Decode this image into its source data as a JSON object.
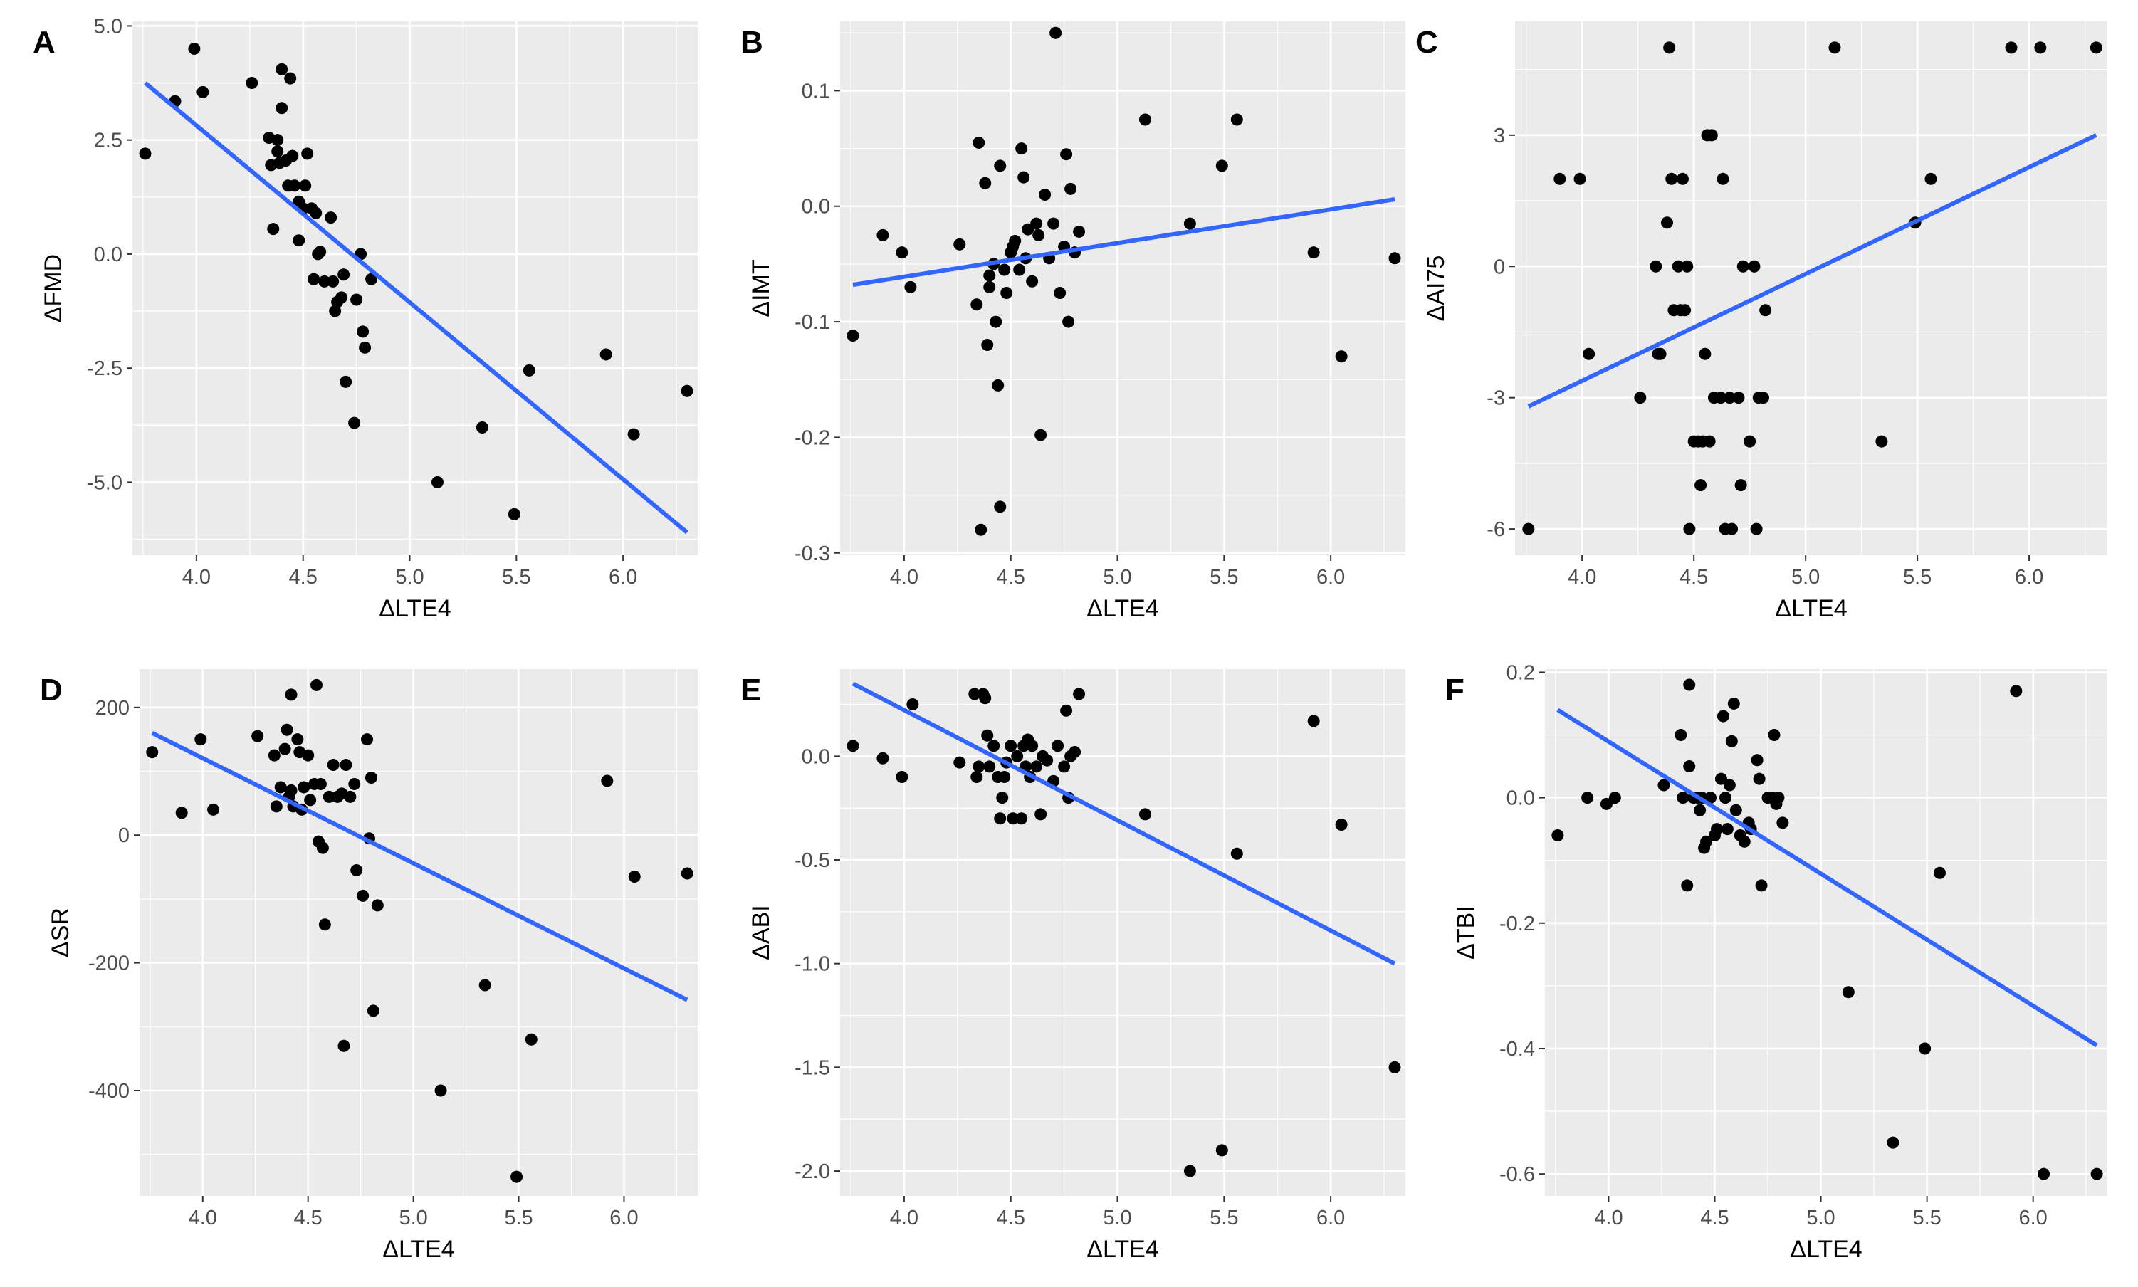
{
  "figure": {
    "background": "#ffffff",
    "panel_background": "#ebebeb",
    "grid_color": "#ffffff",
    "point_color": "#000000",
    "line_color": "#3366ff"
  },
  "chart_data": [
    {
      "panel": "A",
      "type": "scatter",
      "xlabel": "ΔLTE4",
      "ylabel": "ΔFMD",
      "xlim": [
        3.7,
        6.35
      ],
      "ylim": [
        -6.6,
        5.1
      ],
      "xticks": [
        4.0,
        4.5,
        5.0,
        5.5,
        6.0
      ],
      "xtick_labels": [
        "4.0",
        "4.5",
        "5.0",
        "5.5",
        "6.0"
      ],
      "yticks": [
        5.0,
        2.5,
        0.0,
        -2.5,
        -5.0
      ],
      "ytick_labels": [
        "5.0",
        "2.5",
        "0.0",
        "-2.5",
        "-5.0"
      ],
      "points": [
        [
          3.76,
          2.2
        ],
        [
          3.9,
          3.35
        ],
        [
          3.99,
          4.5
        ],
        [
          4.03,
          3.55
        ],
        [
          4.26,
          3.75
        ],
        [
          4.34,
          2.55
        ],
        [
          4.35,
          1.95
        ],
        [
          4.36,
          0.55
        ],
        [
          4.38,
          2.5
        ],
        [
          4.38,
          2.25
        ],
        [
          4.39,
          2.0
        ],
        [
          4.4,
          4.05
        ],
        [
          4.4,
          3.2
        ],
        [
          4.42,
          2.05
        ],
        [
          4.43,
          1.5
        ],
        [
          4.44,
          3.85
        ],
        [
          4.45,
          2.15
        ],
        [
          4.46,
          1.5
        ],
        [
          4.48,
          1.15
        ],
        [
          4.48,
          0.3
        ],
        [
          4.5,
          1.0
        ],
        [
          4.51,
          1.5
        ],
        [
          4.52,
          2.2
        ],
        [
          4.54,
          1.0
        ],
        [
          4.55,
          -0.55
        ],
        [
          4.56,
          0.9
        ],
        [
          4.57,
          0.0
        ],
        [
          4.58,
          0.05
        ],
        [
          4.6,
          -0.6
        ],
        [
          4.63,
          0.8
        ],
        [
          4.64,
          -0.6
        ],
        [
          4.65,
          -1.25
        ],
        [
          4.66,
          -1.05
        ],
        [
          4.68,
          -0.95
        ],
        [
          4.69,
          -0.45
        ],
        [
          4.7,
          -2.8
        ],
        [
          4.74,
          -3.7
        ],
        [
          4.75,
          -1.0
        ],
        [
          4.77,
          0.0
        ],
        [
          4.78,
          -1.7
        ],
        [
          4.79,
          -2.05
        ],
        [
          4.82,
          -0.55
        ],
        [
          5.13,
          -5.0
        ],
        [
          5.34,
          -3.8
        ],
        [
          5.49,
          -5.7
        ],
        [
          5.56,
          -2.55
        ],
        [
          5.92,
          -2.2
        ],
        [
          6.05,
          -3.95
        ],
        [
          6.3,
          -3.0
        ]
      ],
      "fit_line": {
        "x": [
          3.76,
          6.3
        ],
        "y": [
          3.75,
          -6.1
        ]
      }
    },
    {
      "panel": "B",
      "type": "scatter",
      "xlabel": "ΔLTE4",
      "ylabel": "ΔIMT",
      "xlim": [
        3.7,
        6.35
      ],
      "ylim": [
        -0.302,
        0.16
      ],
      "xticks": [
        4.0,
        4.5,
        5.0,
        5.5,
        6.0
      ],
      "xtick_labels": [
        "4.0",
        "4.5",
        "5.0",
        "5.5",
        "6.0"
      ],
      "yticks": [
        0.1,
        0.0,
        -0.1,
        -0.2,
        -0.3
      ],
      "ytick_labels": [
        "0.1",
        "0.0",
        "-0.1",
        "-0.2",
        "-0.3"
      ],
      "points": [
        [
          3.76,
          -0.112
        ],
        [
          3.9,
          -0.025
        ],
        [
          3.99,
          -0.04
        ],
        [
          4.03,
          -0.07
        ],
        [
          4.26,
          -0.033
        ],
        [
          4.34,
          -0.085
        ],
        [
          4.35,
          0.055
        ],
        [
          4.36,
          -0.28
        ],
        [
          4.38,
          0.02
        ],
        [
          4.39,
          -0.12
        ],
        [
          4.4,
          -0.06
        ],
        [
          4.4,
          -0.07
        ],
        [
          4.42,
          -0.05
        ],
        [
          4.43,
          -0.1
        ],
        [
          4.44,
          -0.155
        ],
        [
          4.45,
          -0.26
        ],
        [
          4.45,
          0.035
        ],
        [
          4.47,
          -0.055
        ],
        [
          4.48,
          -0.075
        ],
        [
          4.5,
          -0.04
        ],
        [
          4.51,
          -0.035
        ],
        [
          4.52,
          -0.03
        ],
        [
          4.54,
          -0.055
        ],
        [
          4.55,
          0.05
        ],
        [
          4.56,
          0.025
        ],
        [
          4.57,
          -0.045
        ],
        [
          4.58,
          -0.02
        ],
        [
          4.6,
          -0.065
        ],
        [
          4.62,
          -0.015
        ],
        [
          4.63,
          -0.025
        ],
        [
          4.64,
          -0.198
        ],
        [
          4.66,
          0.01
        ],
        [
          4.68,
          -0.045
        ],
        [
          4.7,
          -0.015
        ],
        [
          4.71,
          0.15
        ],
        [
          4.73,
          -0.075
        ],
        [
          4.75,
          -0.035
        ],
        [
          4.76,
          0.045
        ],
        [
          4.77,
          -0.1
        ],
        [
          4.78,
          0.015
        ],
        [
          4.8,
          -0.04
        ],
        [
          4.82,
          -0.022
        ],
        [
          5.13,
          0.075
        ],
        [
          5.34,
          -0.015
        ],
        [
          5.49,
          0.035
        ],
        [
          5.56,
          0.075
        ],
        [
          5.92,
          -0.04
        ],
        [
          6.05,
          -0.13
        ],
        [
          6.3,
          -0.045
        ]
      ],
      "fit_line": {
        "x": [
          3.76,
          6.3
        ],
        "y": [
          -0.068,
          0.006
        ]
      }
    },
    {
      "panel": "C",
      "type": "scatter",
      "xlabel": "ΔLTE4",
      "ylabel": "ΔAI75",
      "xlim": [
        3.7,
        6.35
      ],
      "ylim": [
        -6.6,
        5.6
      ],
      "xticks": [
        4.0,
        4.5,
        5.0,
        5.5,
        6.0
      ],
      "xtick_labels": [
        "4.0",
        "4.5",
        "5.0",
        "5.5",
        "6.0"
      ],
      "yticks": [
        3,
        0,
        -3,
        -6
      ],
      "ytick_labels": [
        "3",
        "0",
        "-3",
        "-6"
      ],
      "points": [
        [
          3.76,
          -6
        ],
        [
          3.9,
          2
        ],
        [
          3.99,
          2
        ],
        [
          4.03,
          -2
        ],
        [
          4.26,
          -3
        ],
        [
          4.33,
          0
        ],
        [
          4.34,
          -2
        ],
        [
          4.35,
          -2
        ],
        [
          4.38,
          1
        ],
        [
          4.39,
          5
        ],
        [
          4.4,
          2
        ],
        [
          4.41,
          -1
        ],
        [
          4.43,
          0
        ],
        [
          4.44,
          -1
        ],
        [
          4.45,
          2
        ],
        [
          4.46,
          -1
        ],
        [
          4.47,
          0
        ],
        [
          4.48,
          -6
        ],
        [
          4.5,
          -4
        ],
        [
          4.52,
          -4
        ],
        [
          4.53,
          -5
        ],
        [
          4.54,
          -4
        ],
        [
          4.55,
          -2
        ],
        [
          4.56,
          3
        ],
        [
          4.57,
          -4
        ],
        [
          4.58,
          3
        ],
        [
          4.59,
          -3
        ],
        [
          4.62,
          -3
        ],
        [
          4.63,
          2
        ],
        [
          4.64,
          -6
        ],
        [
          4.66,
          -3
        ],
        [
          4.67,
          -6
        ],
        [
          4.7,
          -3
        ],
        [
          4.71,
          -5
        ],
        [
          4.72,
          0
        ],
        [
          4.75,
          -4
        ],
        [
          4.77,
          0
        ],
        [
          4.78,
          -6
        ],
        [
          4.79,
          -3
        ],
        [
          4.81,
          -3
        ],
        [
          4.82,
          -1
        ],
        [
          5.13,
          5
        ],
        [
          5.34,
          -4
        ],
        [
          5.49,
          1
        ],
        [
          5.56,
          2
        ],
        [
          5.92,
          5
        ],
        [
          6.05,
          5
        ],
        [
          6.3,
          5
        ]
      ],
      "fit_line": {
        "x": [
          3.76,
          6.3
        ],
        "y": [
          -3.2,
          3.0
        ]
      }
    },
    {
      "panel": "D",
      "type": "scatter",
      "xlabel": "ΔLTE4",
      "ylabel": "ΔSR",
      "xlim": [
        3.7,
        6.35
      ],
      "ylim": [
        -565,
        260
      ],
      "xticks": [
        4.0,
        4.5,
        5.0,
        5.5,
        6.0
      ],
      "xtick_labels": [
        "4.0",
        "4.5",
        "5.0",
        "5.5",
        "6.0"
      ],
      "yticks": [
        200,
        0,
        -200,
        -400
      ],
      "ytick_labels": [
        "200",
        "0",
        "-200",
        "-400"
      ],
      "points": [
        [
          3.76,
          130
        ],
        [
          3.9,
          35
        ],
        [
          3.99,
          150
        ],
        [
          4.05,
          40
        ],
        [
          4.26,
          155
        ],
        [
          4.34,
          125
        ],
        [
          4.35,
          45
        ],
        [
          4.37,
          75
        ],
        [
          4.39,
          135
        ],
        [
          4.4,
          165
        ],
        [
          4.41,
          60
        ],
        [
          4.42,
          70
        ],
        [
          4.42,
          220
        ],
        [
          4.43,
          45
        ],
        [
          4.45,
          150
        ],
        [
          4.46,
          130
        ],
        [
          4.47,
          40
        ],
        [
          4.48,
          75
        ],
        [
          4.5,
          125
        ],
        [
          4.51,
          55
        ],
        [
          4.53,
          80
        ],
        [
          4.54,
          235
        ],
        [
          4.55,
          -10
        ],
        [
          4.56,
          80
        ],
        [
          4.57,
          -20
        ],
        [
          4.58,
          -140
        ],
        [
          4.6,
          60
        ],
        [
          4.62,
          110
        ],
        [
          4.64,
          60
        ],
        [
          4.66,
          65
        ],
        [
          4.67,
          -330
        ],
        [
          4.68,
          110
        ],
        [
          4.7,
          60
        ],
        [
          4.72,
          80
        ],
        [
          4.73,
          -55
        ],
        [
          4.76,
          -95
        ],
        [
          4.78,
          150
        ],
        [
          4.79,
          -5
        ],
        [
          4.8,
          90
        ],
        [
          4.81,
          -275
        ],
        [
          4.83,
          -110
        ],
        [
          5.13,
          -400
        ],
        [
          5.34,
          -235
        ],
        [
          5.49,
          -535
        ],
        [
          5.56,
          -320
        ],
        [
          5.92,
          85
        ],
        [
          6.05,
          -65
        ],
        [
          6.3,
          -60
        ]
      ],
      "fit_line": {
        "x": [
          3.76,
          6.3
        ],
        "y": [
          160,
          -258
        ]
      }
    },
    {
      "panel": "E",
      "type": "scatter",
      "xlabel": "ΔLTE4",
      "ylabel": "ΔABI",
      "xlim": [
        3.7,
        6.35
      ],
      "ylim": [
        -2.12,
        0.42
      ],
      "xticks": [
        4.0,
        4.5,
        5.0,
        5.5,
        6.0
      ],
      "xtick_labels": [
        "4.0",
        "4.5",
        "5.0",
        "5.5",
        "6.0"
      ],
      "yticks": [
        0.0,
        -0.5,
        -1.0,
        -1.5,
        -2.0
      ],
      "ytick_labels": [
        "0.0",
        "-0.5",
        "-1.0",
        "-1.5",
        "-2.0"
      ],
      "points": [
        [
          3.76,
          0.05
        ],
        [
          3.9,
          -0.01
        ],
        [
          3.99,
          -0.1
        ],
        [
          4.04,
          0.25
        ],
        [
          4.26,
          -0.03
        ],
        [
          4.33,
          0.3
        ],
        [
          4.34,
          -0.1
        ],
        [
          4.35,
          -0.05
        ],
        [
          4.37,
          0.3
        ],
        [
          4.38,
          0.28
        ],
        [
          4.39,
          0.1
        ],
        [
          4.4,
          -0.05
        ],
        [
          4.42,
          0.05
        ],
        [
          4.44,
          -0.1
        ],
        [
          4.45,
          -0.3
        ],
        [
          4.46,
          -0.2
        ],
        [
          4.47,
          -0.1
        ],
        [
          4.48,
          -0.03
        ],
        [
          4.5,
          0.05
        ],
        [
          4.51,
          -0.3
        ],
        [
          4.53,
          0.0
        ],
        [
          4.55,
          -0.3
        ],
        [
          4.56,
          0.05
        ],
        [
          4.57,
          -0.05
        ],
        [
          4.58,
          0.08
        ],
        [
          4.59,
          -0.1
        ],
        [
          4.6,
          0.05
        ],
        [
          4.62,
          -0.05
        ],
        [
          4.64,
          -0.28
        ],
        [
          4.65,
          0.0
        ],
        [
          4.67,
          -0.02
        ],
        [
          4.7,
          -0.12
        ],
        [
          4.72,
          0.05
        ],
        [
          4.75,
          -0.05
        ],
        [
          4.76,
          0.22
        ],
        [
          4.77,
          -0.2
        ],
        [
          4.78,
          0.0
        ],
        [
          4.8,
          0.02
        ],
        [
          4.82,
          0.3
        ],
        [
          5.13,
          -0.28
        ],
        [
          5.34,
          -2.0
        ],
        [
          5.49,
          -1.9
        ],
        [
          5.56,
          -0.47
        ],
        [
          5.92,
          0.17
        ],
        [
          6.05,
          -0.33
        ],
        [
          6.3,
          -1.5
        ]
      ],
      "fit_line": {
        "x": [
          3.76,
          6.3
        ],
        "y": [
          0.35,
          -1.0
        ]
      }
    },
    {
      "panel": "F",
      "type": "scatter",
      "xlabel": "ΔLTE4",
      "ylabel": "ΔTBI",
      "xlim": [
        3.7,
        6.35
      ],
      "ylim": [
        -0.635,
        0.205
      ],
      "xticks": [
        4.0,
        4.5,
        5.0,
        5.5,
        6.0
      ],
      "xtick_labels": [
        "4.0",
        "4.5",
        "5.0",
        "5.5",
        "6.0"
      ],
      "yticks": [
        0.2,
        0.0,
        -0.2,
        -0.4,
        -0.6
      ],
      "ytick_labels": [
        "0.2",
        "0.0",
        "-0.2",
        "-0.4",
        "-0.6"
      ],
      "points": [
        [
          3.76,
          -0.06
        ],
        [
          3.9,
          0.0
        ],
        [
          3.99,
          -0.01
        ],
        [
          4.03,
          0.0
        ],
        [
          4.26,
          0.02
        ],
        [
          4.34,
          0.1
        ],
        [
          4.35,
          0.0
        ],
        [
          4.37,
          -0.14
        ],
        [
          4.38,
          0.05
        ],
        [
          4.38,
          0.18
        ],
        [
          4.4,
          0.0
        ],
        [
          4.42,
          0.0
        ],
        [
          4.43,
          -0.02
        ],
        [
          4.44,
          0.0
        ],
        [
          4.45,
          -0.08
        ],
        [
          4.46,
          -0.07
        ],
        [
          4.48,
          0.0
        ],
        [
          4.5,
          -0.06
        ],
        [
          4.51,
          -0.05
        ],
        [
          4.53,
          0.03
        ],
        [
          4.54,
          0.13
        ],
        [
          4.55,
          0.0
        ],
        [
          4.56,
          -0.05
        ],
        [
          4.57,
          0.02
        ],
        [
          4.58,
          0.09
        ],
        [
          4.59,
          0.15
        ],
        [
          4.6,
          -0.02
        ],
        [
          4.62,
          -0.06
        ],
        [
          4.64,
          -0.07
        ],
        [
          4.66,
          -0.04
        ],
        [
          4.67,
          -0.05
        ],
        [
          4.7,
          0.06
        ],
        [
          4.71,
          0.03
        ],
        [
          4.72,
          -0.14
        ],
        [
          4.75,
          0.0
        ],
        [
          4.77,
          0.0
        ],
        [
          4.78,
          0.1
        ],
        [
          4.79,
          -0.01
        ],
        [
          4.8,
          0.0
        ],
        [
          4.82,
          -0.04
        ],
        [
          5.13,
          -0.31
        ],
        [
          5.34,
          -0.55
        ],
        [
          5.49,
          -0.4
        ],
        [
          5.56,
          -0.12
        ],
        [
          5.92,
          0.17
        ],
        [
          6.05,
          -0.6
        ],
        [
          6.3,
          -0.6
        ]
      ],
      "fit_line": {
        "x": [
          3.76,
          6.3
        ],
        "y": [
          0.14,
          -0.395
        ]
      }
    }
  ]
}
